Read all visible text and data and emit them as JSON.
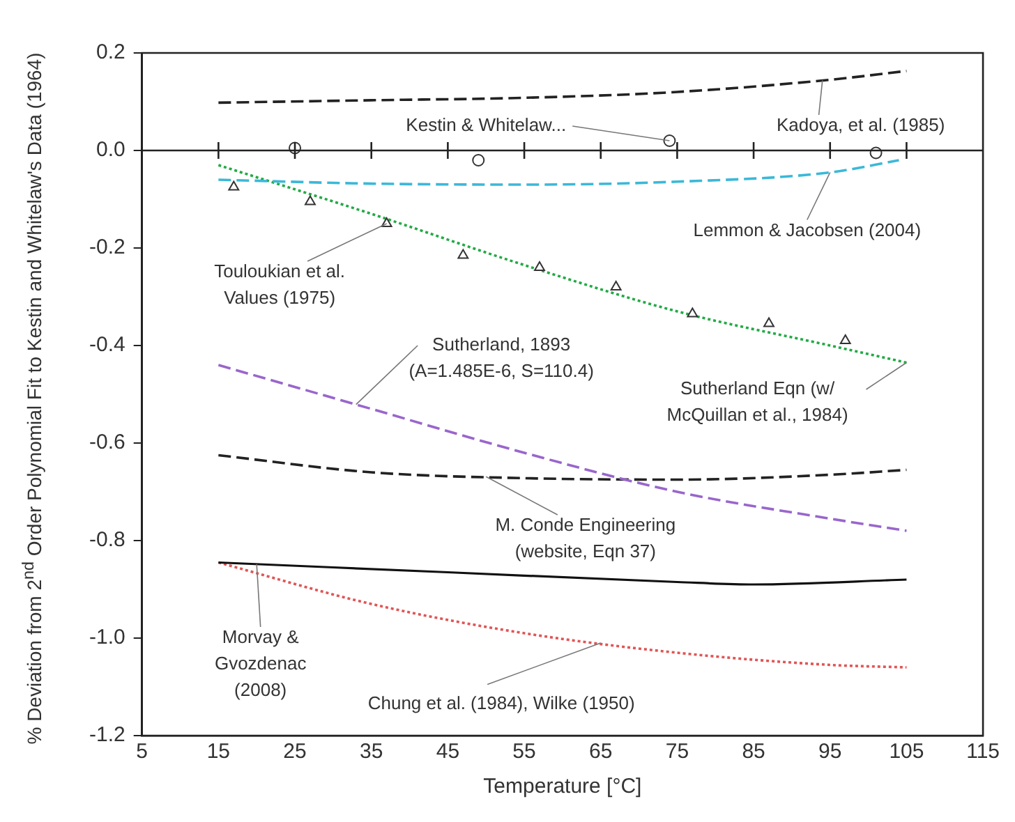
{
  "chart_data": {
    "type": "line",
    "xlabel": "Temperature [°C]",
    "ylabel": "% Deviation from 2$^{nd}$ Order Polynomial Fit to Kestin and Whitelaw's Data (1964)",
    "xlim": [
      5,
      115
    ],
    "xticks": [
      5,
      15,
      25,
      35,
      45,
      55,
      65,
      75,
      85,
      95,
      105,
      115
    ],
    "ylim": [
      -1.2,
      0.2
    ],
    "yticks": [
      {
        "value": -1.2,
        "label": "-1.2"
      },
      {
        "value": -1.0,
        "label": "-1.0"
      },
      {
        "value": -0.8,
        "label": "-0.8"
      },
      {
        "value": -0.6,
        "label": "-0.6"
      },
      {
        "value": -0.4,
        "label": "-0.4"
      },
      {
        "value": -0.2,
        "label": "-0.2"
      },
      {
        "value": 0,
        "label": "0.0"
      },
      {
        "value": 0.2,
        "label": "0.2"
      }
    ],
    "grid": false,
    "legend": false,
    "ref_lines": [
      {
        "axis": "y",
        "value": 0
      }
    ],
    "series": [
      {
        "name": "Kadoya, et al. (1985)",
        "line_style": "dashed",
        "marker": "none",
        "color": "#222222",
        "x": [
          15,
          35,
          55,
          75,
          95,
          105
        ],
        "values": [
          0.098,
          0.103,
          0.108,
          0.12,
          0.145,
          0.163
        ]
      },
      {
        "name": "Kestin & Whitelaw...",
        "type": "scatter",
        "marker": "circle",
        "color": "#333333",
        "x": [
          25,
          49,
          74,
          101
        ],
        "values": [
          0.005,
          -0.02,
          0.02,
          -0.005
        ]
      },
      {
        "name": "Lemmon & Jacobsen (2004)",
        "line_style": "dashed",
        "marker": "none",
        "color": "#3bb8d8",
        "x": [
          15,
          35,
          55,
          75,
          95,
          104
        ],
        "values": [
          -0.06,
          -0.068,
          -0.07,
          -0.064,
          -0.045,
          -0.02
        ]
      },
      {
        "name": "Touloukian et al. Values (1975)",
        "type": "scatter",
        "marker": "triangle",
        "color": "#333333",
        "x": [
          17,
          27,
          37,
          47,
          57,
          67,
          77,
          87,
          97
        ],
        "values": [
          -0.075,
          -0.105,
          -0.15,
          -0.215,
          -0.24,
          -0.28,
          -0.335,
          -0.355,
          -0.39
        ]
      },
      {
        "name": "Sutherland Eqn (w/ McQuillan et al., 1984)",
        "line_style": "dotted",
        "marker": "none",
        "color": "#22aa44",
        "x": [
          15,
          35,
          55,
          75,
          95,
          105
        ],
        "values": [
          -0.03,
          -0.13,
          -0.235,
          -0.33,
          -0.4,
          -0.435
        ]
      },
      {
        "name": "Sutherland, 1893 (A=1.485E-6, S=110.4)",
        "line_style": "dashed",
        "marker": "none",
        "color": "#9966cc",
        "x": [
          15,
          35,
          55,
          75,
          95,
          105
        ],
        "values": [
          -0.44,
          -0.53,
          -0.62,
          -0.7,
          -0.755,
          -0.78
        ]
      },
      {
        "name": "M. Conde Engineering (website, Eqn 37)",
        "line_style": "dashed",
        "marker": "none",
        "color": "#222222",
        "x": [
          15,
          35,
          55,
          75,
          95,
          105
        ],
        "values": [
          -0.625,
          -0.66,
          -0.672,
          -0.675,
          -0.665,
          -0.655
        ]
      },
      {
        "name": "Morvay & Gvozdenac (2008)",
        "line_style": "solid",
        "marker": "none",
        "color": "#111111",
        "x": [
          15,
          45,
          75,
          85,
          105
        ],
        "values": [
          -0.845,
          -0.865,
          -0.885,
          -0.89,
          -0.88
        ]
      },
      {
        "name": "Chung et al. (1984), Wilke (1950)",
        "line_style": "dotted",
        "marker": "none",
        "color": "#e05555",
        "x": [
          15,
          35,
          55,
          75,
          95,
          105
        ],
        "values": [
          -0.845,
          -0.93,
          -0.99,
          -1.03,
          -1.055,
          -1.06
        ]
      }
    ]
  }
}
